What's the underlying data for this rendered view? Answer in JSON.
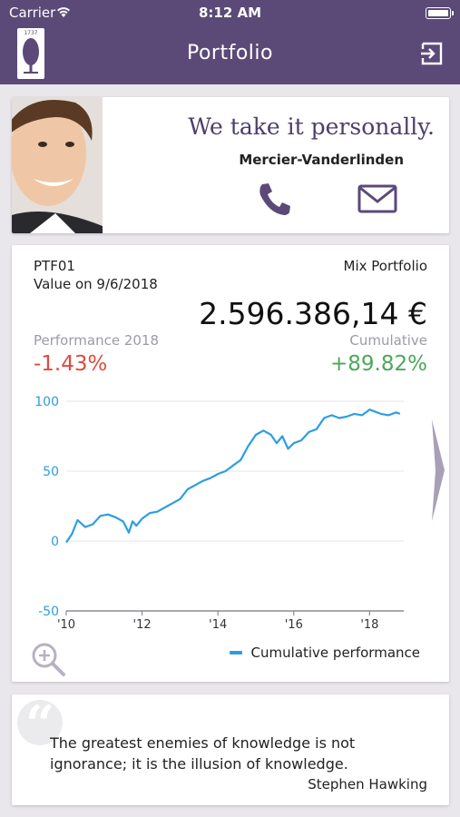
{
  "status_bar": {
    "carrier": "Carrier",
    "time": "8:12 AM"
  },
  "header": {
    "logo_year": "1737",
    "title": "Portfolio"
  },
  "contact": {
    "slogan": "We take it personally.",
    "advisor_name": "Mercier-Vanderlinden"
  },
  "portfolio": {
    "code": "PTF01",
    "type": "Mix Portfolio",
    "value_date_label": "Value on 9/6/2018",
    "value": "2.596.386,14 €",
    "performance_label": "Performance 2018",
    "performance_value": "-1.43%",
    "cumulative_label": "Cumulative",
    "cumulative_value": "+89.82%"
  },
  "chart_data": {
    "type": "line",
    "ylim": [
      -50,
      100
    ],
    "y_ticks": [
      "100",
      "50",
      "0",
      "-50"
    ],
    "y_tick_values": [
      100,
      50,
      0,
      -50
    ],
    "x_ticks": [
      "'10",
      "'12",
      "'14",
      "'16",
      "'18"
    ],
    "x_tick_values": [
      2010,
      2012,
      2014,
      2016,
      2018
    ],
    "xlim": [
      2010,
      2018.9
    ],
    "series": [
      {
        "name": "Cumulative performance",
        "color": "#2c9ee0",
        "x": [
          2010.0,
          2010.15,
          2010.3,
          2010.5,
          2010.7,
          2010.9,
          2011.1,
          2011.3,
          2011.5,
          2011.65,
          2011.75,
          2011.85,
          2012.0,
          2012.2,
          2012.4,
          2012.6,
          2012.8,
          2013.0,
          2013.2,
          2013.4,
          2013.6,
          2013.8,
          2014.0,
          2014.2,
          2014.4,
          2014.6,
          2014.8,
          2015.0,
          2015.2,
          2015.4,
          2015.55,
          2015.7,
          2015.85,
          2016.0,
          2016.2,
          2016.4,
          2016.6,
          2016.8,
          2017.0,
          2017.2,
          2017.4,
          2017.6,
          2017.8,
          2018.0,
          2018.1,
          2018.3,
          2018.5,
          2018.7,
          2018.8
        ],
        "values": [
          -1,
          5,
          15,
          10,
          12,
          18,
          19,
          17,
          14,
          6,
          14,
          11,
          16,
          20,
          21,
          24,
          27,
          30,
          37,
          40,
          43,
          45,
          48,
          50,
          54,
          58,
          68,
          76,
          79,
          76,
          70,
          75,
          66,
          70,
          72,
          78,
          80,
          88,
          90,
          88,
          89,
          91,
          90,
          94,
          93,
          91,
          90,
          92,
          91
        ]
      }
    ],
    "legend_position": "bottom-right",
    "grid": true
  },
  "quote": {
    "text": "The greatest enemies of knowledge is not ignorance; it is the illusion of knowledge.",
    "author": "Stephen Hawking"
  }
}
